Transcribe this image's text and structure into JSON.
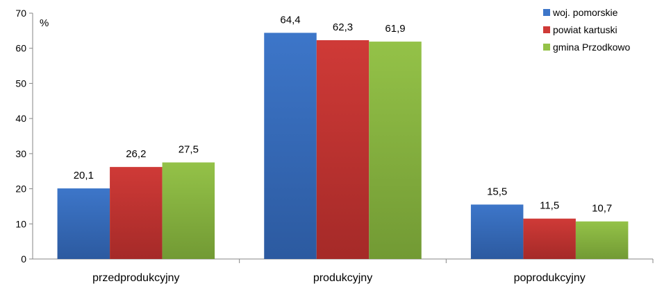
{
  "chart_data": {
    "type": "bar",
    "unit_label": "%",
    "categories": [
      "przedprodukcyjny",
      "produkcyjny",
      "poprodukcyjny"
    ],
    "series": [
      {
        "name": "woj. pomorskie",
        "values": [
          20.1,
          64.4,
          15.5
        ],
        "labels": [
          "20,1",
          "64,4",
          "15,5"
        ],
        "color": "#3d76c9",
        "color_dark": "#2c5aa0"
      },
      {
        "name": "powiat kartuski",
        "values": [
          26.2,
          62.3,
          11.5
        ],
        "labels": [
          "26,2",
          "62,3",
          "11,5"
        ],
        "color": "#cf3a37",
        "color_dark": "#a52a28"
      },
      {
        "name": "gmina Przodkowo",
        "values": [
          27.5,
          61.9,
          10.7
        ],
        "labels": [
          "27,5",
          "61,9",
          "10,7"
        ],
        "color": "#94c248",
        "color_dark": "#729a34"
      }
    ],
    "yticks": [
      "0",
      "10",
      "20",
      "30",
      "40",
      "50",
      "60",
      "70"
    ],
    "ylim": [
      0,
      70
    ],
    "grid": false,
    "legend_position": "top-right"
  }
}
